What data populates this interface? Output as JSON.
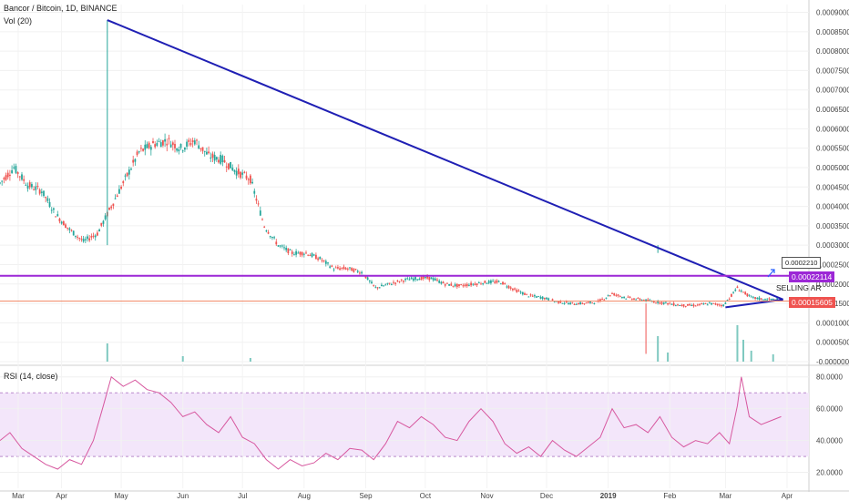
{
  "header": {
    "title": "Bancor / Bitcoin, 1D, BINANCE",
    "volume_label": "Vol (20)",
    "rsi_label": "RSI (14, close)"
  },
  "colors": {
    "up": "#26a69a",
    "down": "#ef5350",
    "trendline": "#1f1fb4",
    "resistance": "#9c27d6",
    "support": "#f28c6b",
    "rsi_line": "#d7589f",
    "rsi_band": "#f3e6fa"
  },
  "chart_data": [
    {
      "type": "candlestick",
      "title": "Bancor / Bitcoin, 1D, BINANCE",
      "x_tick_labels": [
        "Mar",
        "Apr",
        "May",
        "Jun",
        "Jul",
        "Aug",
        "Sep",
        "Oct",
        "Nov",
        "Dec",
        "2019",
        "Feb",
        "Mar",
        "Apr"
      ],
      "x_range": [
        "2018-03-01",
        "2019-04-12"
      ],
      "y_tick_labels": [
        "0.00090000",
        "0.00085000",
        "0.00080000",
        "0.00075000",
        "0.00070000",
        "0.00065000",
        "0.00060000",
        "0.00055000",
        "0.00050000",
        "0.00045000",
        "0.00040000",
        "0.00035000",
        "0.00030000",
        "0.00025000",
        "0.00020000",
        "0.00015000",
        "0.00010000",
        "0.00005000",
        "-0.00000000"
      ],
      "ylim": [
        0,
        0.00092
      ],
      "series": [
        {
          "name": "Price",
          "points": [
            [
              "2018-03-01",
              0.00046
            ],
            [
              "2018-03-08",
              0.0005
            ],
            [
              "2018-03-15",
              0.000455
            ],
            [
              "2018-03-22",
              0.00044
            ],
            [
              "2018-03-29",
              0.00038
            ],
            [
              "2018-04-05",
              0.00034
            ],
            [
              "2018-04-12",
              0.00031
            ],
            [
              "2018-04-19",
              0.00033
            ],
            [
              "2018-04-26",
              0.0004
            ],
            [
              "2018-05-03",
              0.00047
            ],
            [
              "2018-05-10",
              0.00054
            ],
            [
              "2018-05-17",
              0.00056
            ],
            [
              "2018-05-24",
              0.00057
            ],
            [
              "2018-05-31",
              0.00055
            ],
            [
              "2018-06-07",
              0.00057
            ],
            [
              "2018-06-14",
              0.00053
            ],
            [
              "2018-06-21",
              0.00052
            ],
            [
              "2018-06-28",
              0.00049
            ],
            [
              "2018-07-05",
              0.00047
            ],
            [
              "2018-07-12",
              0.00035
            ],
            [
              "2018-07-19",
              0.0003
            ],
            [
              "2018-07-26",
              0.00028
            ],
            [
              "2018-08-02",
              0.00028
            ],
            [
              "2018-08-09",
              0.000265
            ],
            [
              "2018-08-16",
              0.00024
            ],
            [
              "2018-08-23",
              0.00024
            ],
            [
              "2018-08-30",
              0.00023
            ],
            [
              "2018-09-06",
              0.00019
            ],
            [
              "2018-09-13",
              0.0002
            ],
            [
              "2018-09-20",
              0.00021
            ],
            [
              "2018-09-27",
              0.000215
            ],
            [
              "2018-10-04",
              0.000215
            ],
            [
              "2018-10-11",
              0.0002
            ],
            [
              "2018-10-18",
              0.000195
            ],
            [
              "2018-10-25",
              0.0002
            ],
            [
              "2018-11-01",
              0.000205
            ],
            [
              "2018-11-08",
              0.000205
            ],
            [
              "2018-11-15",
              0.000185
            ],
            [
              "2018-11-22",
              0.00017
            ],
            [
              "2018-11-29",
              0.000165
            ],
            [
              "2018-12-06",
              0.000155
            ],
            [
              "2018-12-13",
              0.00015
            ],
            [
              "2018-12-20",
              0.00015
            ],
            [
              "2018-12-27",
              0.000155
            ],
            [
              "2019-01-03",
              0.000175
            ],
            [
              "2019-01-10",
              0.000165
            ],
            [
              "2019-01-17",
              0.00016
            ],
            [
              "2019-01-24",
              0.000155
            ],
            [
              "2019-01-31",
              0.00015
            ],
            [
              "2019-02-07",
              0.000145
            ],
            [
              "2019-02-14",
              0.000145
            ],
            [
              "2019-02-21",
              0.00015
            ],
            [
              "2019-02-28",
              0.000145
            ],
            [
              "2019-03-07",
              0.00019
            ],
            [
              "2019-03-14",
              0.000165
            ],
            [
              "2019-03-21",
              0.00016
            ],
            [
              "2019-03-28",
              0.00016
            ]
          ]
        }
      ],
      "spikes": [
        {
          "date": "2018-04-24",
          "high": 0.00088,
          "color": "up"
        },
        {
          "date": "2019-01-26",
          "high": 0.00028,
          "color": "up"
        },
        {
          "date": "2019-01-20",
          "low": 2e-05,
          "color": "down"
        }
      ],
      "annotations": {
        "trendline": {
          "from": [
            "2018-04-24",
            0.00088
          ],
          "to": [
            "2019-03-30",
            0.00016
          ]
        },
        "resistance_level": 0.00022114,
        "resistance_label": "0.00022114",
        "support_level": 0.00015605,
        "support_label": "0.00015605",
        "triangle_bottom": {
          "from": [
            "2019-03-01",
            0.00014
          ],
          "to": [
            "2019-03-30",
            0.00016
          ]
        },
        "callout_label": "0.0002210",
        "note": "SELLING AR"
      }
    },
    {
      "type": "bar",
      "name": "Vol (20)",
      "title": "Vol (20)",
      "values_relative": [
        {
          "date": "2018-04-24",
          "value": 0.5
        },
        {
          "date": "2018-06-01",
          "value": 0.15
        },
        {
          "date": "2018-07-05",
          "value": 0.1
        },
        {
          "date": "2019-01-26",
          "value": 0.7
        },
        {
          "date": "2019-01-31",
          "value": 0.25
        },
        {
          "date": "2019-03-07",
          "value": 1.0
        },
        {
          "date": "2019-03-10",
          "value": 0.6
        },
        {
          "date": "2019-03-14",
          "value": 0.3
        },
        {
          "date": "2019-03-25",
          "value": 0.2
        }
      ]
    },
    {
      "type": "line",
      "name": "RSI (14, close)",
      "title": "RSI (14, close)",
      "y_tick_labels": [
        "80.0000",
        "60.0000",
        "40.0000",
        "20.0000"
      ],
      "ylim": [
        10,
        85
      ],
      "band": [
        30,
        70
      ],
      "points": [
        [
          "2018-03-01",
          40
        ],
        [
          "2018-03-06",
          45
        ],
        [
          "2018-03-12",
          35
        ],
        [
          "2018-03-18",
          30
        ],
        [
          "2018-03-24",
          25
        ],
        [
          "2018-03-30",
          22
        ],
        [
          "2018-04-05",
          28
        ],
        [
          "2018-04-11",
          25
        ],
        [
          "2018-04-17",
          40
        ],
        [
          "2018-04-22",
          62
        ],
        [
          "2018-04-26",
          80
        ],
        [
          "2018-05-02",
          74
        ],
        [
          "2018-05-08",
          78
        ],
        [
          "2018-05-14",
          72
        ],
        [
          "2018-05-20",
          70
        ],
        [
          "2018-05-26",
          64
        ],
        [
          "2018-06-01",
          55
        ],
        [
          "2018-06-07",
          58
        ],
        [
          "2018-06-13",
          50
        ],
        [
          "2018-06-19",
          45
        ],
        [
          "2018-06-25",
          55
        ],
        [
          "2018-07-01",
          42
        ],
        [
          "2018-07-07",
          38
        ],
        [
          "2018-07-13",
          28
        ],
        [
          "2018-07-19",
          22
        ],
        [
          "2018-07-25",
          28
        ],
        [
          "2018-07-31",
          24
        ],
        [
          "2018-08-06",
          26
        ],
        [
          "2018-08-12",
          32
        ],
        [
          "2018-08-18",
          28
        ],
        [
          "2018-08-24",
          35
        ],
        [
          "2018-08-30",
          34
        ],
        [
          "2018-09-05",
          28
        ],
        [
          "2018-09-11",
          38
        ],
        [
          "2018-09-17",
          52
        ],
        [
          "2018-09-23",
          48
        ],
        [
          "2018-09-29",
          55
        ],
        [
          "2018-10-05",
          50
        ],
        [
          "2018-10-11",
          42
        ],
        [
          "2018-10-17",
          40
        ],
        [
          "2018-10-23",
          52
        ],
        [
          "2018-10-29",
          60
        ],
        [
          "2018-11-04",
          52
        ],
        [
          "2018-11-10",
          38
        ],
        [
          "2018-11-16",
          32
        ],
        [
          "2018-11-22",
          36
        ],
        [
          "2018-11-28",
          30
        ],
        [
          "2018-12-04",
          40
        ],
        [
          "2018-12-10",
          34
        ],
        [
          "2018-12-16",
          30
        ],
        [
          "2018-12-22",
          36
        ],
        [
          "2018-12-28",
          42
        ],
        [
          "2019-01-03",
          60
        ],
        [
          "2019-01-09",
          48
        ],
        [
          "2019-01-15",
          50
        ],
        [
          "2019-01-21",
          45
        ],
        [
          "2019-01-27",
          55
        ],
        [
          "2019-02-02",
          42
        ],
        [
          "2019-02-08",
          36
        ],
        [
          "2019-02-14",
          40
        ],
        [
          "2019-02-20",
          38
        ],
        [
          "2019-02-26",
          45
        ],
        [
          "2019-03-03",
          38
        ],
        [
          "2019-03-07",
          62
        ],
        [
          "2019-03-09",
          80
        ],
        [
          "2019-03-13",
          55
        ],
        [
          "2019-03-19",
          50
        ],
        [
          "2019-03-25",
          53
        ],
        [
          "2019-03-29",
          55
        ]
      ]
    }
  ]
}
